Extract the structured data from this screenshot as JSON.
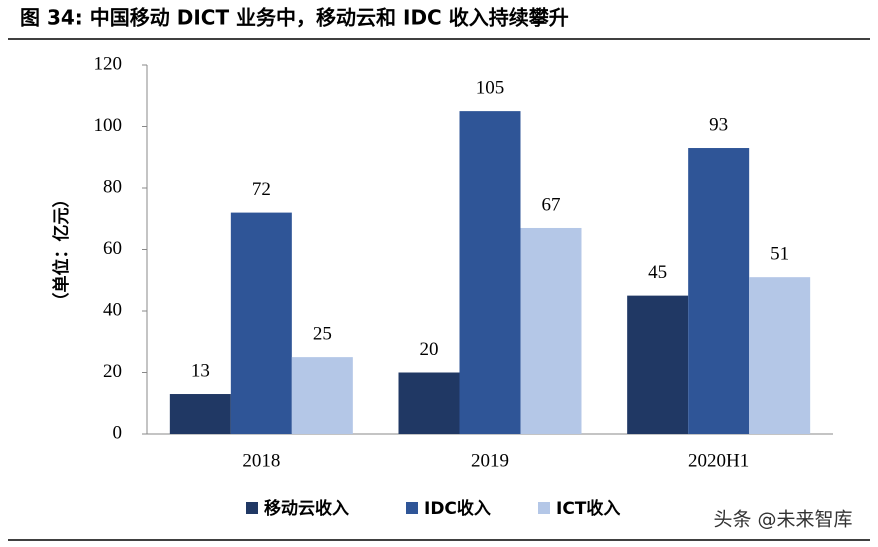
{
  "chart_data": {
    "type": "bar",
    "title": "图 34: 中国移动 DICT 业务中，移动云和 IDC 收入持续攀升",
    "y_label": "（单位：亿元）",
    "categories": [
      "2018",
      "2019",
      "2020H1"
    ],
    "series": [
      {
        "name": "移动云收入",
        "color": "#203864",
        "values": [
          13,
          20,
          45
        ]
      },
      {
        "name": "IDC收入",
        "color": "#2f5597",
        "values": [
          72,
          105,
          93
        ]
      },
      {
        "name": "ICT收入",
        "color": "#b4c7e7",
        "values": [
          25,
          67,
          51
        ]
      }
    ],
    "ylim": [
      0,
      120
    ],
    "yticks": [
      0,
      20,
      40,
      60,
      80,
      100,
      120
    ],
    "legend": "bottom",
    "watermark": "头条 @未来智库"
  }
}
